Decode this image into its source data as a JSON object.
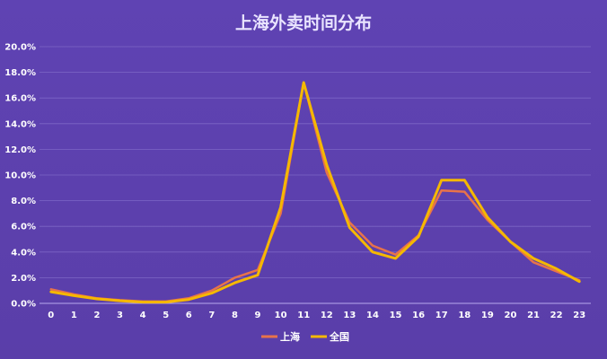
{
  "chart_data": {
    "type": "line",
    "title": "上海外卖时间分布",
    "xlabel": "",
    "ylabel": "",
    "x": [
      "0",
      "1",
      "2",
      "3",
      "4",
      "5",
      "6",
      "7",
      "8",
      "9",
      "10",
      "11",
      "12",
      "13",
      "14",
      "15",
      "16",
      "17",
      "18",
      "19",
      "20",
      "21",
      "22",
      "23"
    ],
    "y_ticks": [
      "0.0%",
      "2.0%",
      "4.0%",
      "6.0%",
      "8.0%",
      "10.0%",
      "12.0%",
      "14.0%",
      "16.0%",
      "18.0%",
      "20.0%"
    ],
    "ylim": [
      0,
      20
    ],
    "grid": true,
    "legend_position": "bottom",
    "series": [
      {
        "name": "上海",
        "color": "#e8734a",
        "values": [
          1.1,
          0.7,
          0.4,
          0.25,
          0.15,
          0.15,
          0.4,
          1.0,
          2.0,
          2.6,
          7.0,
          17.2,
          10.2,
          6.3,
          4.5,
          3.8,
          5.3,
          8.8,
          8.7,
          6.5,
          4.8,
          3.2,
          2.5,
          1.8
        ]
      },
      {
        "name": "全国",
        "color": "#f5b800",
        "values": [
          0.9,
          0.6,
          0.35,
          0.2,
          0.1,
          0.1,
          0.3,
          0.8,
          1.6,
          2.2,
          7.5,
          17.2,
          10.8,
          5.9,
          4.0,
          3.5,
          5.2,
          9.6,
          9.6,
          6.7,
          4.8,
          3.5,
          2.7,
          1.7
        ]
      }
    ]
  }
}
